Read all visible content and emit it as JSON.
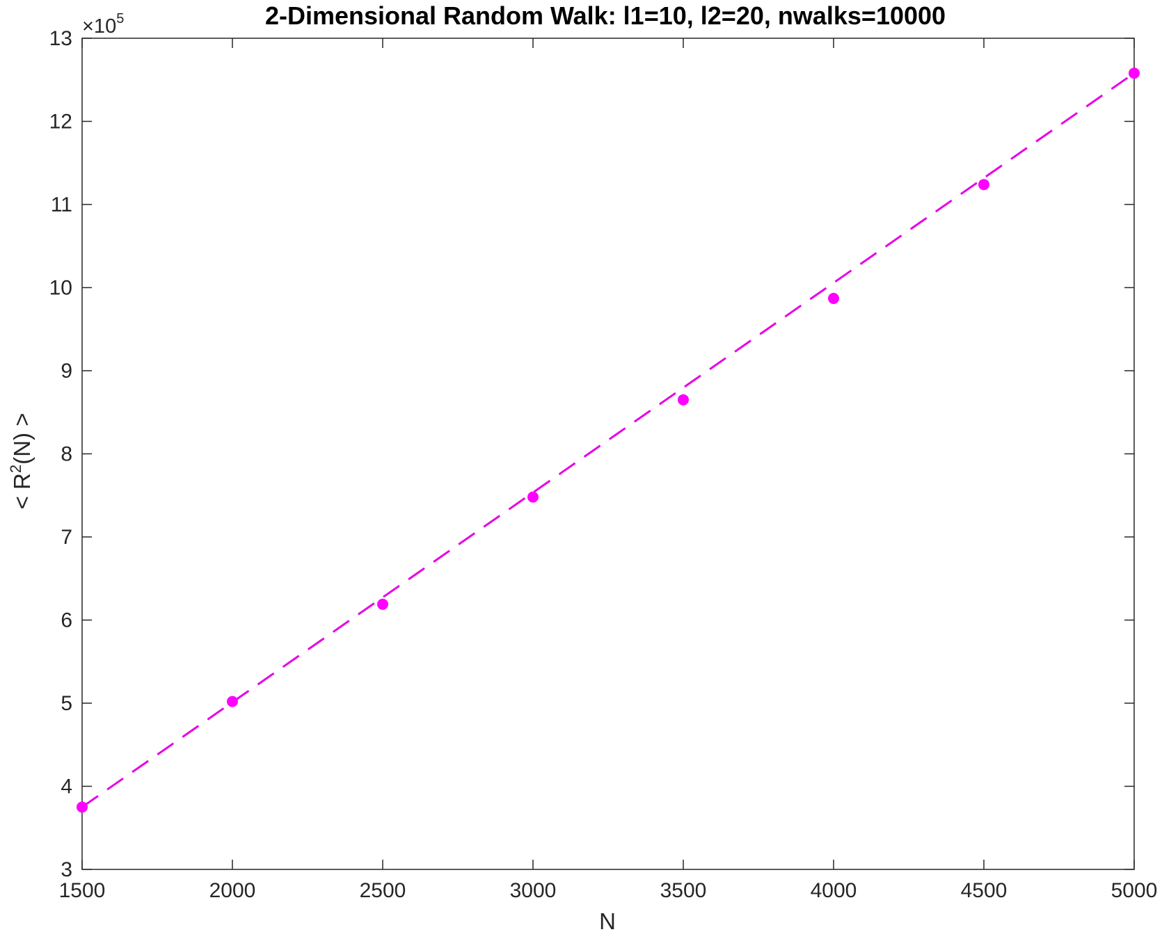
{
  "chart_data": {
    "type": "line",
    "title": "2-Dimensional Random Walk: l1=10, l2=20,  nwalks=10000",
    "xlabel": "N",
    "ylabel": {
      "prefix": "< R",
      "superscript": "2",
      "suffix": "(N) >"
    },
    "y_exponent": {
      "base": "×10",
      "power": "5"
    },
    "xlim": [
      1500,
      5000
    ],
    "ylim": [
      3,
      13
    ],
    "xticks": [
      1500,
      2000,
      2500,
      3000,
      3500,
      4000,
      4500,
      5000
    ],
    "yticks": [
      3,
      4,
      5,
      6,
      7,
      8,
      9,
      10,
      11,
      12,
      13
    ],
    "grid": false,
    "series": [
      {
        "style": "markers",
        "color": "#ff00ff",
        "x": [
          1500,
          2000,
          2500,
          3000,
          3500,
          4000,
          4500,
          5000
        ],
        "y": [
          3.75,
          5.02,
          6.19,
          7.48,
          8.65,
          9.87,
          11.24,
          12.58
        ]
      },
      {
        "style": "dashed-line",
        "color": "#e600e6",
        "x": [
          1500,
          5000
        ],
        "y": [
          3.75,
          12.58
        ]
      }
    ]
  }
}
